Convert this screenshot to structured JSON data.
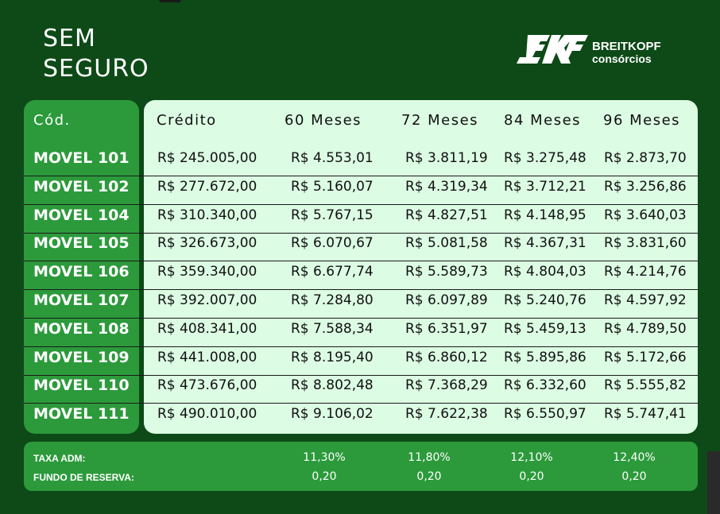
{
  "title": {
    "line1": "SEM",
    "line2": "SEGURO"
  },
  "logo": {
    "brand": "BREITKOPF",
    "sub": "consórcios"
  },
  "headers": {
    "code": "Cód.",
    "credit": "Crédito",
    "m60": "60 Meses",
    "m72": "72 Meses",
    "m84": "84 Meses",
    "m96": "96 Meses"
  },
  "rows": [
    {
      "code": "MOVEL 101",
      "credit": "R$ 245.005,00",
      "m60": "R$ 4.553,01",
      "m72": "R$ 3.811,19",
      "m84": "R$ 3.275,48",
      "m96": "R$ 2.873,70"
    },
    {
      "code": "MOVEL 102",
      "credit": "R$ 277.672,00",
      "m60": "R$ 5.160,07",
      "m72": "R$ 4.319,34",
      "m84": "R$ 3.712,21",
      "m96": "R$ 3.256,86"
    },
    {
      "code": "MOVEL 104",
      "credit": "R$ 310.340,00",
      "m60": "R$ 5.767,15",
      "m72": "R$ 4.827,51",
      "m84": "R$ 4.148,95",
      "m96": "R$ 3.640,03"
    },
    {
      "code": "MOVEL 105",
      "credit": "R$ 326.673,00",
      "m60": "R$ 6.070,67",
      "m72": "R$ 5.081,58",
      "m84": "R$ 4.367,31",
      "m96": "R$ 3.831,60"
    },
    {
      "code": "MOVEL 106",
      "credit": "R$ 359.340,00",
      "m60": "R$ 6.677,74",
      "m72": "R$ 5.589,73",
      "m84": "R$ 4.804,03",
      "m96": "R$ 4.214,76"
    },
    {
      "code": "MOVEL 107",
      "credit": "R$ 392.007,00",
      "m60": "R$ 7.284,80",
      "m72": "R$ 6.097,89",
      "m84": "R$ 5.240,76",
      "m96": "R$ 4.597,92"
    },
    {
      "code": "MOVEL 108",
      "credit": "R$ 408.341,00",
      "m60": "R$ 7.588,34",
      "m72": "R$ 6.351,97",
      "m84": "R$ 5.459,13",
      "m96": "R$ 4.789,50"
    },
    {
      "code": "MOVEL 109",
      "credit": "R$ 441.008,00",
      "m60": "R$ 8.195,40",
      "m72": "R$ 6.860,12",
      "m84": "R$ 5.895,86",
      "m96": "R$ 5.172,66"
    },
    {
      "code": "MOVEL 110",
      "credit": "R$ 473.676,00",
      "m60": "R$ 8.802,48",
      "m72": "R$ 7.368,29",
      "m84": "R$ 6.332,60",
      "m96": "R$ 5.555,82"
    },
    {
      "code": "MOVEL 111",
      "credit": "R$ 490.010,00",
      "m60": "R$ 9.106,02",
      "m72": "R$ 7.622,38",
      "m84": "R$ 6.550,97",
      "m96": "R$ 5.747,41"
    }
  ],
  "footer": {
    "taxa_label": "TAXA ADM:",
    "fundo_label": "FUNDO DE RESERVA:",
    "taxa": [
      "11,30%",
      "11,80%",
      "12,10%",
      "12,40%"
    ],
    "fundo": [
      "0,20",
      "0,20",
      "0,20",
      "0,20"
    ]
  },
  "colors": {
    "background": "#0d4a17",
    "accent_green": "#2c9a3b",
    "panel": "#dcfce3"
  }
}
